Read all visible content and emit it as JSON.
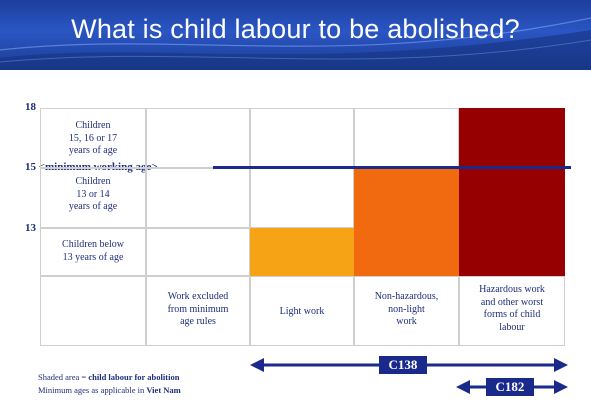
{
  "title": "What is child labour to be abolished?",
  "axis": {
    "top": "18",
    "middle": "15 <minimum working age>",
    "bottom": "13"
  },
  "rows": [
    "Children 15, 16 or 17 years of age",
    "Children 13 or 14 years of age",
    "Children below 13 years of age"
  ],
  "columns": [
    "Work excluded from minimum age rules",
    "Light work",
    "Non-hazardous, non-light work",
    "Hazardous work and other worst forms of child labour"
  ],
  "row_lines": {
    "r0": [
      "Children",
      "15, 16 or 17",
      "years of age"
    ],
    "r1": [
      "Children",
      "13 or 14",
      "years of age"
    ],
    "r2": [
      "Children below",
      "13 years of age"
    ]
  },
  "col_lines": {
    "c0": [
      "Work excluded",
      "from minimum",
      "age rules"
    ],
    "c1": [
      "Light work"
    ],
    "c2": [
      "Non-hazardous,",
      "non-light",
      "work"
    ],
    "c3": [
      "Hazardous work",
      "and other worst",
      "forms of child",
      "labour"
    ]
  },
  "conventions": {
    "c138": "C138",
    "c182": "C182"
  },
  "notes": {
    "line1_prefix": "Shaded area = ",
    "line1_bold": "child labour for abolition",
    "line2_prefix": "Minimum ages as applicable in ",
    "line2_bold": "Viet Nam"
  },
  "colors": {
    "light_orange": "#f6a316",
    "orange": "#f26a10",
    "dark_red": "#960000",
    "navy": "#1a2a8a"
  }
}
